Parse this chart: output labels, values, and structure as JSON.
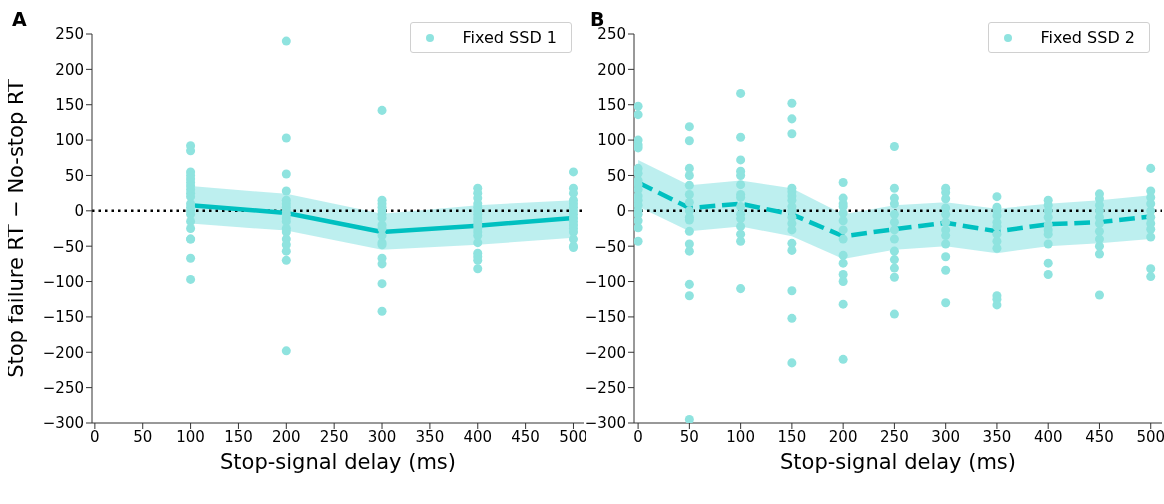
{
  "chart_data": [
    {
      "type": "scatter",
      "title": "A",
      "xlabel": "Stop-signal delay (ms)",
      "ylabel": "Stop failure RT − No-stop RT",
      "xlim": [
        -3,
        511
      ],
      "ylim": [
        -300,
        250
      ],
      "xticks": [
        0,
        50,
        100,
        150,
        200,
        250,
        300,
        350,
        400,
        450,
        500
      ],
      "yticks": [
        {
          "value": -300,
          "label": "−300"
        },
        {
          "value": -250,
          "label": "−250"
        },
        {
          "value": -200,
          "label": "−200"
        },
        {
          "value": -150,
          "label": "−150"
        },
        {
          "value": -100,
          "label": "−100"
        },
        {
          "value": -50,
          "label": "−50"
        },
        0,
        50,
        100,
        150,
        200,
        250
      ],
      "grid": false,
      "legend": "top right",
      "ref_lines": [
        {
          "axis": "y",
          "value": 0,
          "color": "#000000",
          "line_style": "dotted"
        }
      ],
      "series": [
        {
          "name": "Fixed SSD 1",
          "marker": "circle",
          "color": "#8fe3df",
          "x": [
            100,
            100,
            100,
            100,
            100,
            100,
            100,
            100,
            100,
            100,
            100,
            100,
            100,
            100,
            100,
            100,
            100,
            100,
            100,
            100,
            200,
            200,
            200,
            200,
            200,
            200,
            200,
            200,
            200,
            200,
            200,
            200,
            200,
            200,
            200,
            200,
            200,
            200,
            300,
            300,
            300,
            300,
            300,
            300,
            300,
            300,
            300,
            300,
            300,
            300,
            300,
            300,
            300,
            300,
            400,
            400,
            400,
            400,
            400,
            400,
            400,
            400,
            400,
            400,
            400,
            400,
            400,
            400,
            400,
            400,
            400,
            400,
            500,
            500,
            500,
            500,
            500,
            500,
            500,
            500,
            500,
            500,
            500,
            500,
            500,
            500,
            500,
            500
          ],
          "values": [
            92,
            85,
            55,
            50,
            45,
            40,
            35,
            30,
            25,
            20,
            10,
            5,
            0,
            -5,
            -15,
            -25,
            -40,
            -40,
            -67,
            -97,
            240,
            103,
            52,
            28,
            15,
            10,
            5,
            0,
            -5,
            -10,
            -15,
            -25,
            -30,
            -40,
            -48,
            -57,
            -70,
            -198,
            142,
            15,
            10,
            5,
            0,
            -5,
            -10,
            -20,
            -25,
            -35,
            -45,
            -48,
            -67,
            -75,
            -103,
            -142,
            32,
            25,
            18,
            10,
            5,
            0,
            -5,
            -10,
            -15,
            -20,
            -25,
            -30,
            -35,
            -45,
            -60,
            -65,
            -70,
            -82,
            55,
            32,
            25,
            15,
            10,
            5,
            0,
            -5,
            -10,
            -15,
            -20,
            -25,
            -30,
            -40,
            -50,
            -52
          ]
        },
        {
          "type": "line",
          "marker": "none",
          "line_style": "solid",
          "color": "#00c0c0",
          "x": [
            100,
            200,
            300,
            400,
            500
          ],
          "values": [
            8,
            -3,
            -30,
            -21,
            -10
          ],
          "lower": [
            -18,
            -28,
            -55,
            -48,
            -38
          ],
          "upper": [
            35,
            24,
            -4,
            8,
            15
          ]
        }
      ]
    },
    {
      "type": "scatter",
      "title": "B",
      "xlabel": "Stop-signal delay (ms)",
      "xlim": [
        -4,
        511
      ],
      "ylim": [
        -300,
        250
      ],
      "xticks": [
        0,
        50,
        100,
        150,
        200,
        250,
        300,
        350,
        400,
        450,
        500
      ],
      "yticks": [
        {
          "value": -300,
          "label": "−300"
        },
        {
          "value": -250,
          "label": "−250"
        },
        {
          "value": -200,
          "label": "−200"
        },
        {
          "value": -150,
          "label": "−150"
        },
        {
          "value": -100,
          "label": "−100"
        },
        {
          "value": -50,
          "label": "−50"
        },
        0,
        50,
        100,
        150,
        200,
        250
      ],
      "grid": false,
      "legend": "top right",
      "ref_lines": [
        {
          "axis": "y",
          "value": 0,
          "color": "#000000",
          "line_style": "dotted"
        }
      ],
      "series": [
        {
          "name": "Fixed SSD 2",
          "marker": "circle",
          "color": "#8fe3df",
          "x": [
            0,
            0,
            0,
            0,
            0,
            0,
            0,
            0,
            0,
            0,
            0,
            0,
            0,
            0,
            0,
            0,
            0,
            0,
            50,
            50,
            50,
            50,
            50,
            50,
            50,
            50,
            50,
            50,
            50,
            50,
            50,
            50,
            50,
            50,
            100,
            100,
            100,
            100,
            100,
            100,
            100,
            100,
            100,
            100,
            100,
            100,
            100,
            100,
            100,
            150,
            150,
            150,
            150,
            150,
            150,
            150,
            150,
            150,
            150,
            150,
            150,
            150,
            150,
            150,
            150,
            150,
            200,
            200,
            200,
            200,
            200,
            200,
            200,
            200,
            200,
            200,
            200,
            200,
            200,
            200,
            250,
            250,
            250,
            250,
            250,
            250,
            250,
            250,
            250,
            250,
            250,
            250,
            250,
            300,
            300,
            300,
            300,
            300,
            300,
            300,
            300,
            300,
            300,
            300,
            300,
            350,
            350,
            350,
            350,
            350,
            350,
            350,
            350,
            350,
            350,
            350,
            350,
            400,
            400,
            400,
            400,
            400,
            400,
            400,
            400,
            400,
            400,
            450,
            450,
            450,
            450,
            450,
            450,
            450,
            450,
            450,
            450,
            450,
            500,
            500,
            500,
            500,
            500,
            500,
            500,
            500,
            500,
            500,
            500
          ],
          "values": [
            148,
            136,
            100,
            93,
            89,
            60,
            53,
            43,
            37,
            30,
            21,
            15,
            8,
            0,
            -5,
            -14,
            -24,
            -43,
            119,
            99,
            60,
            50,
            36,
            23,
            12,
            0,
            -9,
            -13,
            -29,
            -47,
            -57,
            -104,
            -120,
            -295,
            166,
            104,
            72,
            56,
            50,
            37,
            23,
            19,
            6,
            -5,
            -11,
            -22,
            -33,
            -43,
            -110,
            152,
            130,
            109,
            32,
            27,
            21,
            15,
            6,
            0,
            -9,
            -18,
            -27,
            -46,
            -56,
            -113,
            -152,
            -215,
            40,
            18,
            10,
            6,
            -3,
            -14,
            -27,
            -40,
            -63,
            -74,
            -90,
            -100,
            -132,
            -210,
            91,
            32,
            18,
            10,
            -5,
            -16,
            -27,
            -40,
            -57,
            -69,
            -81,
            -94,
            -146,
            32,
            26,
            17,
            4,
            -5,
            -16,
            -27,
            -35,
            -47,
            -65,
            -84,
            -130,
            20,
            5,
            0,
            -7,
            -16,
            -22,
            -33,
            -43,
            -53,
            -120,
            -125,
            -133,
            15,
            8,
            0,
            -9,
            -20,
            -27,
            -33,
            -47,
            -74,
            -90,
            24,
            17,
            8,
            0,
            -9,
            -18,
            -29,
            -40,
            -50,
            -61,
            -119,
            60,
            28,
            19,
            10,
            0,
            -9,
            -18,
            -26,
            -37,
            -82,
            -93
          ]
        },
        {
          "type": "line",
          "marker": "none",
          "line_style": "dashed",
          "color": "#00c0c0",
          "x": [
            0,
            50,
            100,
            150,
            200,
            250,
            300,
            350,
            400,
            450,
            500
          ],
          "values": [
            40,
            4,
            10,
            -5,
            -36,
            -26,
            -17,
            -29,
            -19,
            -16,
            -8
          ],
          "lower": [
            6,
            -29,
            -22,
            -36,
            -68,
            -55,
            -50,
            -60,
            -50,
            -46,
            -40
          ],
          "upper": [
            72,
            36,
            43,
            32,
            -5,
            8,
            12,
            3,
            10,
            15,
            22
          ]
        }
      ]
    }
  ]
}
